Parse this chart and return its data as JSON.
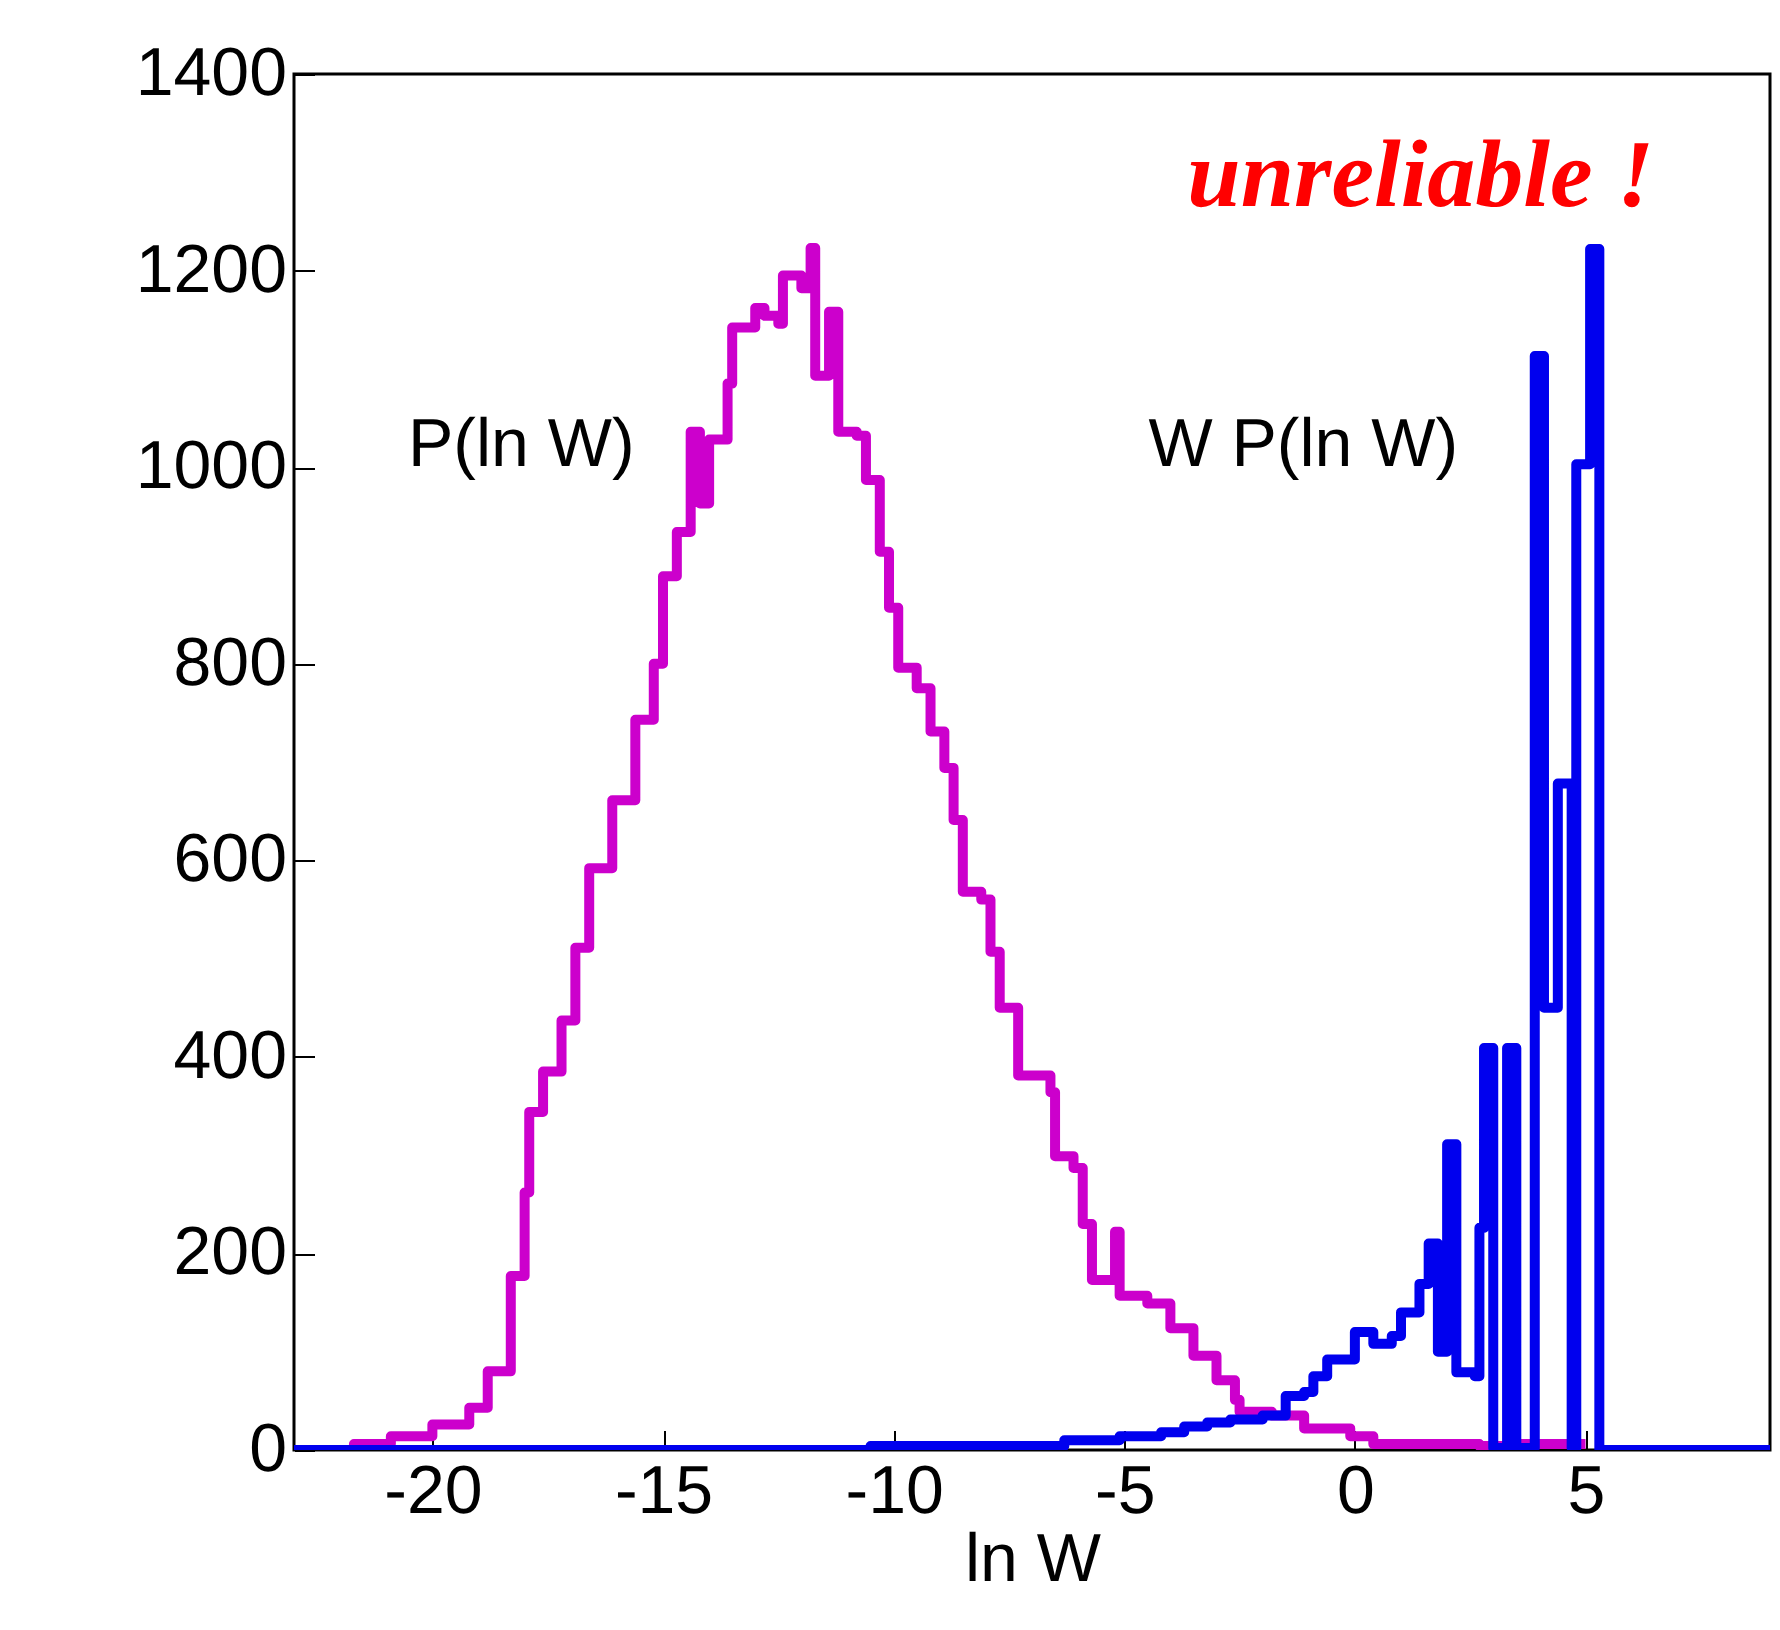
{
  "chart_data": {
    "type": "step",
    "xlabel": "ln W",
    "xlim": [
      -23,
      9
    ],
    "xticks": [
      -20,
      -15,
      -10,
      -5,
      0,
      5
    ],
    "ylim": [
      0,
      1400
    ],
    "yticks": [
      0,
      200,
      400,
      600,
      800,
      1000,
      1200,
      1400
    ],
    "grid": false,
    "legend": false,
    "line_style": "solid",
    "marker": "none",
    "annotations": [
      "unreliable !"
    ],
    "series": [
      {
        "name": "P(ln W)",
        "color": "#cc00cc",
        "x": [
          -22.8,
          -21.7,
          -20.9,
          -20.0,
          -19.2,
          -18.8,
          -18.3,
          -18.0,
          -17.9,
          -17.6,
          -17.2,
          -16.9,
          -16.6,
          -16.1,
          -15.6,
          -15.2,
          -15.0,
          -14.7,
          -14.4,
          -14.2,
          -14.0,
          -13.6,
          -13.5,
          -13.0,
          -12.8,
          -12.5,
          -12.4,
          -12.0,
          -11.8,
          -11.7,
          -11.4,
          -11.2,
          -10.8,
          -10.6,
          -10.3,
          -10.1,
          -9.9,
          -9.5,
          -9.2,
          -8.9,
          -8.7,
          -8.5,
          -8.1,
          -7.9,
          -7.7,
          -7.3,
          -6.6,
          -6.5,
          -6.1,
          -5.9,
          -5.7,
          -5.2,
          -5.1,
          -4.5,
          -4.0,
          -3.5,
          -3.0,
          -2.6,
          -2.5,
          -1.8,
          -1.1,
          -0.1,
          0.4,
          2.7,
          3.5,
          4.4,
          5.0
        ],
        "values": [
          0,
          6,
          14,
          26,
          43,
          80,
          177,
          262,
          344,
          385,
          437,
          511,
          592,
          661,
          743,
          800,
          889,
          934,
          1036,
          963,
          1028,
          1085,
          1142,
          1162,
          1154,
          1146,
          1195,
          1182,
          1223,
          1093,
          1158,
          1036,
          1032,
          987,
          914,
          857,
          796,
          775,
          731,
          694,
          641,
          568,
          560,
          507,
          450,
          381,
          364,
          299,
          287,
          230,
          173,
          222,
          157,
          149,
          124,
          96,
          71,
          51,
          39,
          35,
          22,
          14,
          6,
          4,
          6,
          6,
          6
        ]
      },
      {
        "name": "W P(ln W)",
        "color": "#0000ee",
        "x": [
          -23,
          -10.5,
          -6.3,
          -5.1,
          -4.2,
          -3.7,
          -3.2,
          -2.7,
          -2.0,
          -1.5,
          -1.1,
          -0.9,
          -0.6,
          0.0,
          0.4,
          0.8,
          1.0,
          1.4,
          1.6,
          1.8,
          2.0,
          2.2,
          2.6,
          2.7,
          2.8,
          3.0,
          3.3,
          3.5,
          3.9,
          4.1,
          4.4,
          4.7,
          4.8,
          5.1,
          5.3,
          9
        ],
        "values": [
          0,
          4,
          10,
          14,
          18,
          24,
          28,
          31,
          35,
          55,
          59,
          75,
          92,
          120,
          108,
          116,
          140,
          169,
          210,
          100,
          311,
          79,
          75,
          226,
          409,
          2,
          409,
          2,
          1113,
          450,
          678,
          2,
          1003,
          1222,
          0,
          0
        ]
      }
    ]
  }
}
